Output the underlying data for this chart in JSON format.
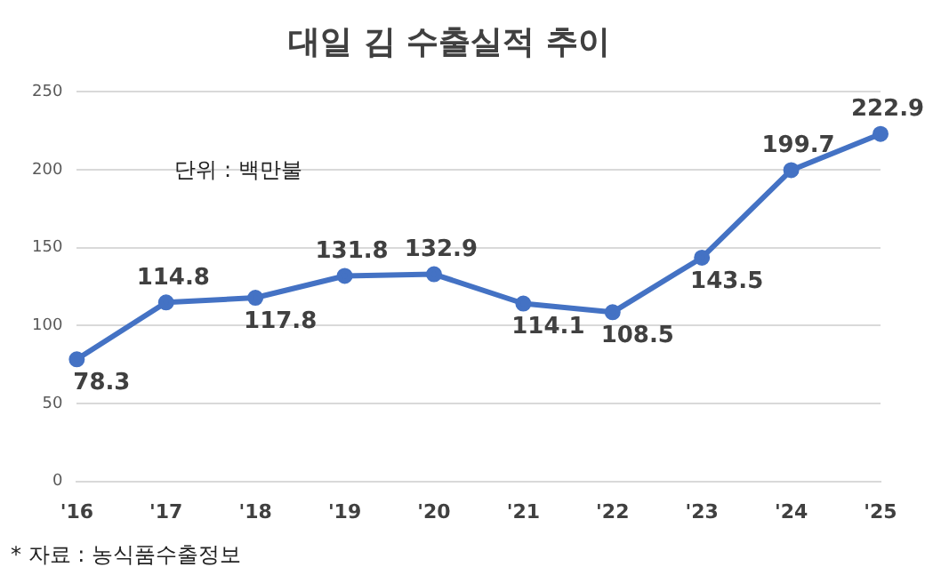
{
  "chart_data": {
    "type": "line",
    "title": "대일 김 수출실적 추이",
    "categories": [
      "'16",
      "'17",
      "'18",
      "'19",
      "'20",
      "'21",
      "'22",
      "'23",
      "'24",
      "'25"
    ],
    "values": [
      78.3,
      114.8,
      117.8,
      131.8,
      132.9,
      114.1,
      108.5,
      143.5,
      199.7,
      222.9
    ],
    "color": "#4472c4",
    "ylim": [
      0,
      250
    ],
    "yticks": [
      0,
      50,
      100,
      150,
      200,
      250
    ],
    "grid": "y",
    "legend": false,
    "marker": "circle",
    "line_style": "solid",
    "data_labels": true,
    "annotations": [
      "단위 : 백만불",
      "* 자료 : 농식품수출정보"
    ]
  }
}
